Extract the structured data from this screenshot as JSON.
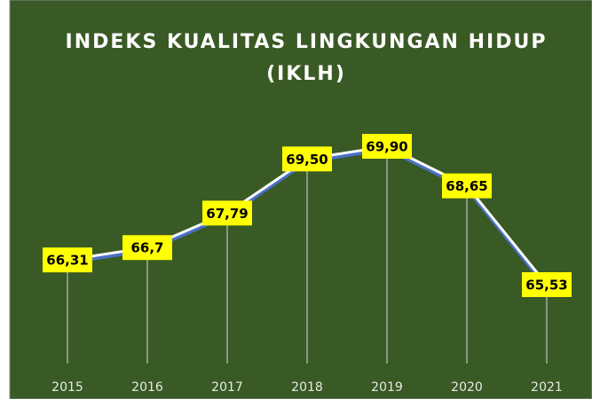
{
  "chart_data": {
    "type": "line",
    "title": [
      "INDEKS KUALITAS LINGKUNGAN HIDUP",
      "(IKLH)"
    ],
    "categories": [
      "2015",
      "2016",
      "2017",
      "2018",
      "2019",
      "2020",
      "2021"
    ],
    "values": [
      66.31,
      66.7,
      67.79,
      69.5,
      69.9,
      68.65,
      65.53
    ],
    "value_labels": [
      "66,31",
      "66,7",
      "67,79",
      "69,50",
      "69,90",
      "68,65",
      "65,53"
    ],
    "color": "#ffffff"
  }
}
